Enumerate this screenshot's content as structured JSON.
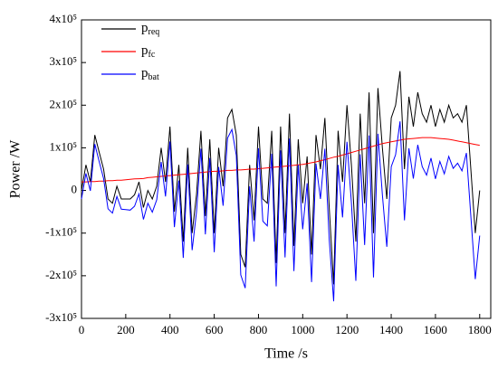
{
  "chart_data": {
    "type": "line",
    "xlabel": "Time /s",
    "ylabel": "Power /W",
    "x": [
      0,
      20,
      40,
      60,
      80,
      100,
      120,
      140,
      160,
      180,
      200,
      220,
      240,
      260,
      280,
      300,
      320,
      340,
      360,
      380,
      400,
      420,
      440,
      460,
      480,
      500,
      520,
      540,
      560,
      580,
      600,
      620,
      640,
      660,
      680,
      700,
      720,
      740,
      760,
      780,
      800,
      820,
      840,
      860,
      880,
      900,
      920,
      940,
      960,
      980,
      1000,
      1020,
      1040,
      1060,
      1080,
      1100,
      1120,
      1140,
      1160,
      1180,
      1200,
      1220,
      1240,
      1260,
      1280,
      1300,
      1320,
      1340,
      1360,
      1380,
      1400,
      1420,
      1440,
      1460,
      1480,
      1500,
      1520,
      1540,
      1560,
      1580,
      1600,
      1620,
      1640,
      1660,
      1680,
      1700,
      1720,
      1740,
      1760,
      1780,
      1800
    ],
    "series": [
      {
        "name": "preq",
        "color": "#000000",
        "values": [
          0,
          60000,
          20000,
          130000,
          90000,
          50000,
          -20000,
          -30000,
          10000,
          -20000,
          -20000,
          -20000,
          -10000,
          20000,
          -40000,
          0,
          -20000,
          10000,
          100000,
          20000,
          150000,
          -50000,
          60000,
          -120000,
          100000,
          -100000,
          -10000,
          140000,
          -60000,
          120000,
          -100000,
          100000,
          10000,
          170000,
          190000,
          130000,
          -150000,
          -180000,
          60000,
          -70000,
          150000,
          -20000,
          -30000,
          140000,
          -170000,
          150000,
          -100000,
          180000,
          -130000,
          120000,
          -30000,
          80000,
          -150000,
          130000,
          50000,
          170000,
          -40000,
          -220000,
          140000,
          20000,
          200000,
          60000,
          -120000,
          180000,
          -30000,
          230000,
          -100000,
          240000,
          100000,
          -20000,
          170000,
          200000,
          280000,
          50000,
          220000,
          150000,
          230000,
          180000,
          160000,
          200000,
          150000,
          190000,
          160000,
          200000,
          170000,
          180000,
          160000,
          200000,
          50000,
          -100000,
          0
        ]
      },
      {
        "name": "pfc",
        "color": "#ff0000",
        "values": [
          20000,
          20000,
          21000,
          21000,
          22000,
          22000,
          23000,
          23000,
          24000,
          24000,
          25000,
          26000,
          27000,
          27500,
          28000,
          30000,
          31000,
          32000,
          33000,
          34000,
          35000,
          36000,
          37000,
          38000,
          39000,
          40000,
          41000,
          42000,
          43000,
          44000,
          45000,
          45000,
          46000,
          47000,
          47000,
          48000,
          48000,
          49000,
          50000,
          50000,
          51000,
          52000,
          53000,
          54000,
          55000,
          56000,
          57000,
          58000,
          59000,
          60000,
          61000,
          63000,
          65000,
          67000,
          70000,
          72000,
          75000,
          78000,
          80000,
          83000,
          86000,
          89000,
          92000,
          95000,
          98000,
          101000,
          104000,
          107000,
          110000,
          112000,
          114000,
          116000,
          118000,
          120000,
          121000,
          122000,
          123000,
          124000,
          124000,
          124000,
          123000,
          122000,
          121000,
          120000,
          118000,
          116000,
          114000,
          112000,
          110000,
          108000,
          106000
        ]
      },
      {
        "name": "pbat",
        "color": "#0000ff",
        "values": [
          -20000,
          40000,
          -1000,
          109000,
          68000,
          28000,
          -43000,
          -53000,
          -14000,
          -44000,
          -45000,
          -46000,
          -37000,
          -8000,
          -68000,
          -30000,
          -51000,
          -22000,
          67000,
          -14000,
          115000,
          -86000,
          23000,
          -158000,
          61000,
          -140000,
          -51000,
          98000,
          -103000,
          76000,
          -145000,
          55000,
          -36000,
          123000,
          143000,
          82000,
          -198000,
          -229000,
          10000,
          -120000,
          99000,
          -72000,
          -83000,
          86000,
          -225000,
          94000,
          -157000,
          122000,
          -189000,
          60000,
          -91000,
          17000,
          -215000,
          63000,
          -20000,
          98000,
          -115000,
          -260000,
          60000,
          -63000,
          114000,
          -29000,
          -212000,
          85000,
          -128000,
          129000,
          -204000,
          133000,
          -10000,
          -132000,
          56000,
          84000,
          162000,
          -70000,
          99000,
          28000,
          107000,
          56000,
          36000,
          76000,
          27000,
          68000,
          39000,
          80000,
          52000,
          64000,
          46000,
          88000,
          -60000,
          -208000,
          -106000
        ]
      }
    ],
    "xlim": [
      0,
      1850
    ],
    "xticks": [
      0,
      200,
      400,
      600,
      800,
      1000,
      1200,
      1400,
      1600,
      1800
    ],
    "ylim": [
      -300000,
      400000
    ],
    "yticks": [
      {
        "value": -300000,
        "label": "-3x10⁵"
      },
      {
        "value": -200000,
        "label": "-2x10⁵"
      },
      {
        "value": -100000,
        "label": "-1x10⁵"
      },
      0,
      {
        "value": 100000,
        "label": "1x10⁵"
      },
      {
        "value": 200000,
        "label": "2x10⁵"
      },
      {
        "value": 300000,
        "label": "3x10⁵"
      },
      {
        "value": 400000,
        "label": "4x10⁵"
      }
    ],
    "legend": "upper left",
    "grid": false
  }
}
